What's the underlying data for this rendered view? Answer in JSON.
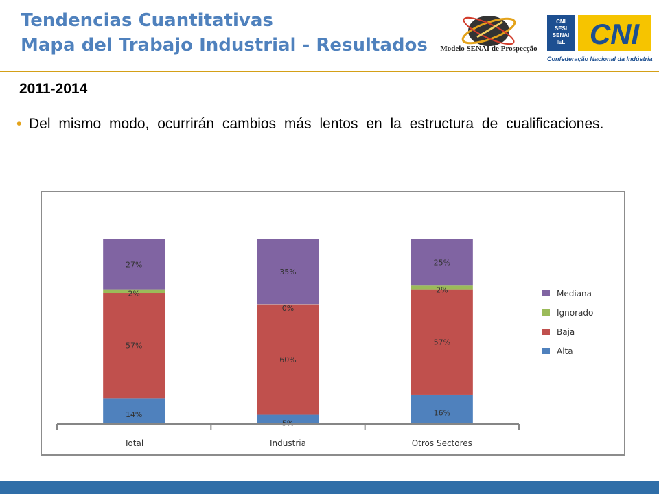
{
  "header": {
    "title_line1": "Tendencias Cuantitativas",
    "title_line2": "Mapa del Trabajo Industrial - Resultados",
    "logo_senai_text": "Modelo SENAI de Prospecção",
    "logo_cni_small": [
      "CNI",
      "SESI",
      "SENAI",
      "IEL"
    ],
    "logo_cni_big": "CNI",
    "logo_cni_caption": "Confederação Nacional da Indústria"
  },
  "content": {
    "subtitle": "2011-2014",
    "bullet": "Del mismo modo, ocurrirán cambios más lentos en la estructura de cualificaciones."
  },
  "colors": {
    "Alta": "#4f81bd",
    "Baja": "#c0504d",
    "Ignorado": "#9bbb59",
    "Mediana": "#8064a2",
    "title": "#4f81bd",
    "accent": "#d4a017",
    "footer": "#2f6ea8"
  },
  "chart_data": {
    "type": "bar",
    "stacked": true,
    "categories": [
      "Total",
      "Industria",
      "Otros Sectores"
    ],
    "series": [
      {
        "name": "Alta",
        "values": [
          14,
          5,
          16
        ],
        "labels": [
          "14%",
          "5%",
          "16%"
        ]
      },
      {
        "name": "Baja",
        "values": [
          57,
          60,
          57
        ],
        "labels": [
          "57%",
          "60%",
          "57%"
        ]
      },
      {
        "name": "Ignorado",
        "values": [
          2,
          0,
          2
        ],
        "labels": [
          "2%",
          "0%",
          "2%"
        ]
      },
      {
        "name": "Mediana",
        "values": [
          27,
          35,
          25
        ],
        "labels": [
          "27%",
          "35%",
          "25%"
        ]
      }
    ],
    "legend_order": [
      "Mediana",
      "Ignorado",
      "Baja",
      "Alta"
    ],
    "legend_position": "right",
    "ylim": [
      0,
      100
    ],
    "grid": false
  }
}
